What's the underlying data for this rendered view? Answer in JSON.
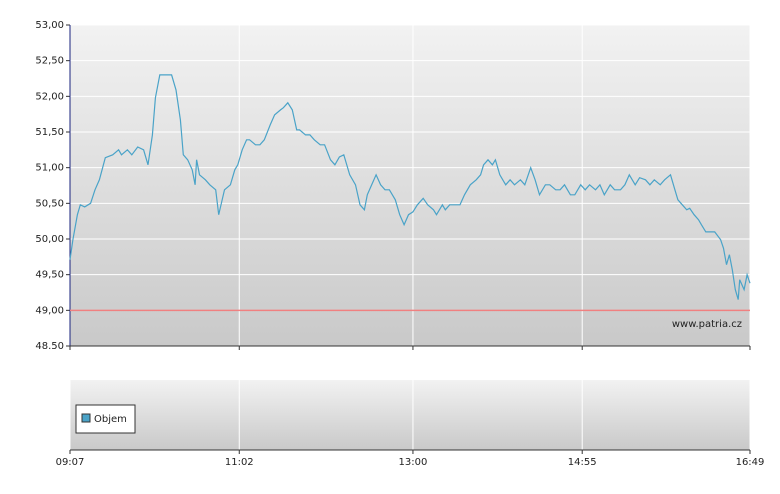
{
  "chart_data": {
    "type": "line",
    "x": [
      "09:07",
      "09:09",
      "09:12",
      "09:14",
      "09:17",
      "09:21",
      "09:24",
      "09:27",
      "09:31",
      "09:36",
      "09:40",
      "09:42",
      "09:46",
      "09:49",
      "09:53",
      "09:57",
      "10:00",
      "10:03",
      "10:05",
      "10:08",
      "10:12",
      "10:16",
      "10:19",
      "10:22",
      "10:24",
      "10:27",
      "10:30",
      "10:32",
      "10:33",
      "10:35",
      "10:39",
      "10:42",
      "10:46",
      "10:48",
      "10:52",
      "10:56",
      "10:59",
      "11:01",
      "11:04",
      "11:07",
      "11:09",
      "11:13",
      "11:16",
      "11:19",
      "11:23",
      "11:26",
      "11:30",
      "11:32",
      "11:35",
      "11:38",
      "11:41",
      "11:43",
      "11:47",
      "11:50",
      "11:53",
      "11:57",
      "12:00",
      "12:04",
      "12:07",
      "12:10",
      "12:13",
      "12:17",
      "12:21",
      "12:24",
      "12:27",
      "12:29",
      "12:32",
      "12:35",
      "12:38",
      "12:41",
      "12:44",
      "12:48",
      "12:51",
      "12:54",
      "12:57",
      "13:00",
      "13:03",
      "13:07",
      "13:10",
      "13:14",
      "13:16",
      "13:20",
      "13:22",
      "13:25",
      "13:29",
      "13:32",
      "13:35",
      "13:39",
      "13:43",
      "13:46",
      "13:48",
      "13:51",
      "13:54",
      "13:56",
      "13:59",
      "14:03",
      "14:06",
      "14:09",
      "14:13",
      "14:16",
      "14:20",
      "14:23",
      "14:26",
      "14:30",
      "14:33",
      "14:37",
      "14:40",
      "14:43",
      "14:47",
      "14:50",
      "14:54",
      "14:57",
      "15:00",
      "15:04",
      "15:07",
      "15:10",
      "15:14",
      "15:17",
      "15:21",
      "15:24",
      "15:27",
      "15:31",
      "15:34",
      "15:38",
      "15:41",
      "15:44",
      "15:48",
      "15:51",
      "15:55",
      "15:58",
      "16:00",
      "16:03",
      "16:06",
      "16:08",
      "16:11",
      "16:14",
      "16:16",
      "16:19",
      "16:22",
      "16:25",
      "16:29",
      "16:31",
      "16:33",
      "16:35",
      "16:37",
      "16:39",
      "16:41",
      "16:42",
      "16:45",
      "16:47",
      "16:49"
    ],
    "series": [
      {
        "color": "#4aa3c8",
        "values": [
          49.71,
          49.99,
          50.34,
          50.48,
          50.45,
          50.5,
          50.69,
          50.83,
          51.14,
          51.18,
          51.25,
          51.18,
          51.25,
          51.18,
          51.29,
          51.25,
          51.04,
          51.46,
          51.98,
          52.3,
          52.3,
          52.3,
          52.09,
          51.67,
          51.18,
          51.11,
          50.97,
          50.76,
          51.11,
          50.9,
          50.83,
          50.76,
          50.69,
          50.34,
          50.69,
          50.76,
          50.97,
          51.04,
          51.25,
          51.39,
          51.39,
          51.32,
          51.32,
          51.39,
          51.6,
          51.74,
          51.81,
          51.84,
          51.91,
          51.81,
          51.53,
          51.53,
          51.46,
          51.46,
          51.39,
          51.32,
          51.32,
          51.11,
          51.04,
          51.15,
          51.18,
          50.9,
          50.76,
          50.48,
          50.41,
          50.62,
          50.76,
          50.9,
          50.76,
          50.69,
          50.69,
          50.55,
          50.34,
          50.2,
          50.34,
          50.38,
          50.48,
          50.57,
          50.48,
          50.41,
          50.34,
          50.48,
          50.41,
          50.48,
          50.48,
          50.48,
          50.62,
          50.76,
          50.83,
          50.9,
          51.04,
          51.11,
          51.04,
          51.11,
          50.9,
          50.76,
          50.83,
          50.76,
          50.83,
          50.76,
          51.0,
          50.83,
          50.62,
          50.76,
          50.76,
          50.69,
          50.69,
          50.76,
          50.62,
          50.62,
          50.76,
          50.69,
          50.76,
          50.69,
          50.76,
          50.62,
          50.76,
          50.69,
          50.69,
          50.76,
          50.9,
          50.76,
          50.86,
          50.83,
          50.76,
          50.83,
          50.76,
          50.83,
          50.9,
          50.69,
          50.55,
          50.48,
          50.41,
          50.43,
          50.34,
          50.27,
          50.2,
          50.1,
          50.1,
          50.1,
          49.99,
          49.87,
          49.64,
          49.78,
          49.57,
          49.29,
          49.15,
          49.43,
          49.29,
          49.5,
          49.38
        ]
      }
    ],
    "reference_line": {
      "value": 49,
      "color": "#f08080"
    },
    "ylim": [
      48.5,
      53
    ],
    "yticks": [
      {
        "value": 48.5,
        "label": "48.50"
      },
      {
        "value": 49,
        "label": "49,00"
      },
      {
        "value": 49.5,
        "label": "49,50"
      },
      {
        "value": 50,
        "label": "50,00"
      },
      {
        "value": 50.5,
        "label": "50,50"
      },
      {
        "value": 51,
        "label": "51,00"
      },
      {
        "value": 51.5,
        "label": "51,50"
      },
      {
        "value": 52,
        "label": "52,00"
      },
      {
        "value": 52.5,
        "label": "52,50"
      },
      {
        "value": 53,
        "label": "53,00"
      }
    ],
    "xlim": [
      "09:07",
      "16:49"
    ],
    "xticks": [
      "09:07",
      "11:02",
      "13:00",
      "14:55",
      "16:49"
    ],
    "grid": true,
    "watermark": "www.patria.cz",
    "volume": {
      "name": "Objem",
      "color": "#4aa3c8"
    }
  }
}
